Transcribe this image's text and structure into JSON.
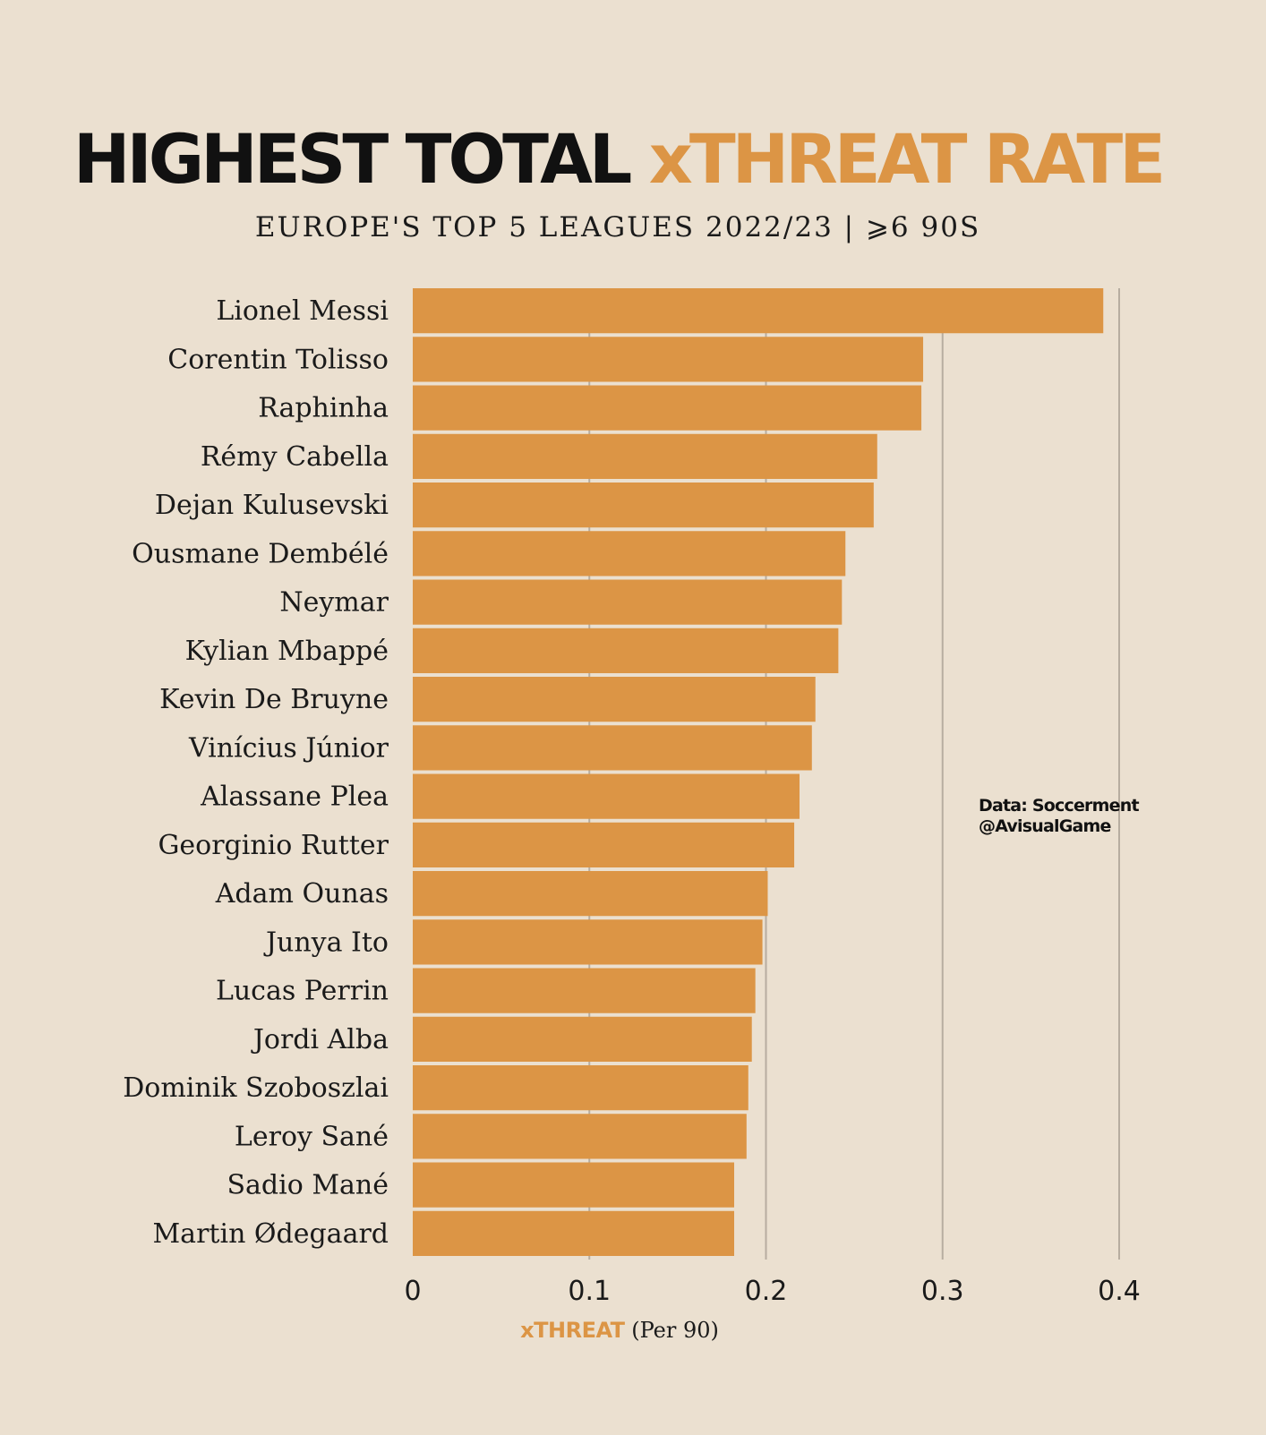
{
  "header": {
    "title_main": "HIGHEST TOTAL",
    "title_accent": "xTHREAT RATE",
    "subtitle": "EUROPE'S TOP 5 LEAGUES 2022/23  |  ⩾6 90S"
  },
  "credit": {
    "line1": "Data: Soccerment",
    "line2": "@AvisualGame"
  },
  "colors": {
    "background": "#ebe0d0",
    "bar": "#dc9545",
    "accent_text": "#dc9545",
    "gridline": "#b7ada0"
  },
  "chart_data": {
    "type": "bar",
    "orientation": "horizontal",
    "title": "HIGHEST TOTAL xTHREAT RATE",
    "subtitle": "EUROPE'S TOP 5 LEAGUES 2022/23  |  ⩾6 90S",
    "categories": [
      "Lionel Messi",
      "Corentin Tolisso",
      "Raphinha",
      "Rémy Cabella",
      "Dejan Kulusevski",
      "Ousmane Dembélé",
      "Neymar",
      "Kylian Mbappé",
      "Kevin De Bruyne",
      "Vinícius Júnior",
      "Alassane Plea",
      "Georginio Rutter",
      "Adam Ounas",
      "Junya Ito",
      "Lucas Perrin",
      "Jordi Alba",
      "Dominik Szoboszlai",
      "Leroy Sané",
      "Sadio Mané",
      "Martin Ødegaard"
    ],
    "values": [
      0.391,
      0.289,
      0.288,
      0.263,
      0.261,
      0.245,
      0.243,
      0.241,
      0.228,
      0.226,
      0.219,
      0.216,
      0.201,
      0.198,
      0.194,
      0.192,
      0.19,
      0.189,
      0.182,
      0.182
    ],
    "xlabel_accent": "xTHREAT",
    "xlabel_unit": "(Per 90)",
    "xlim": [
      0,
      0.4
    ],
    "xticks": [
      0,
      0.1,
      0.2,
      0.3,
      0.4
    ],
    "xtick_labels": [
      "0",
      "0.1",
      "0.2",
      "0.3",
      "0.4"
    ],
    "grid": true,
    "legend": "none"
  }
}
